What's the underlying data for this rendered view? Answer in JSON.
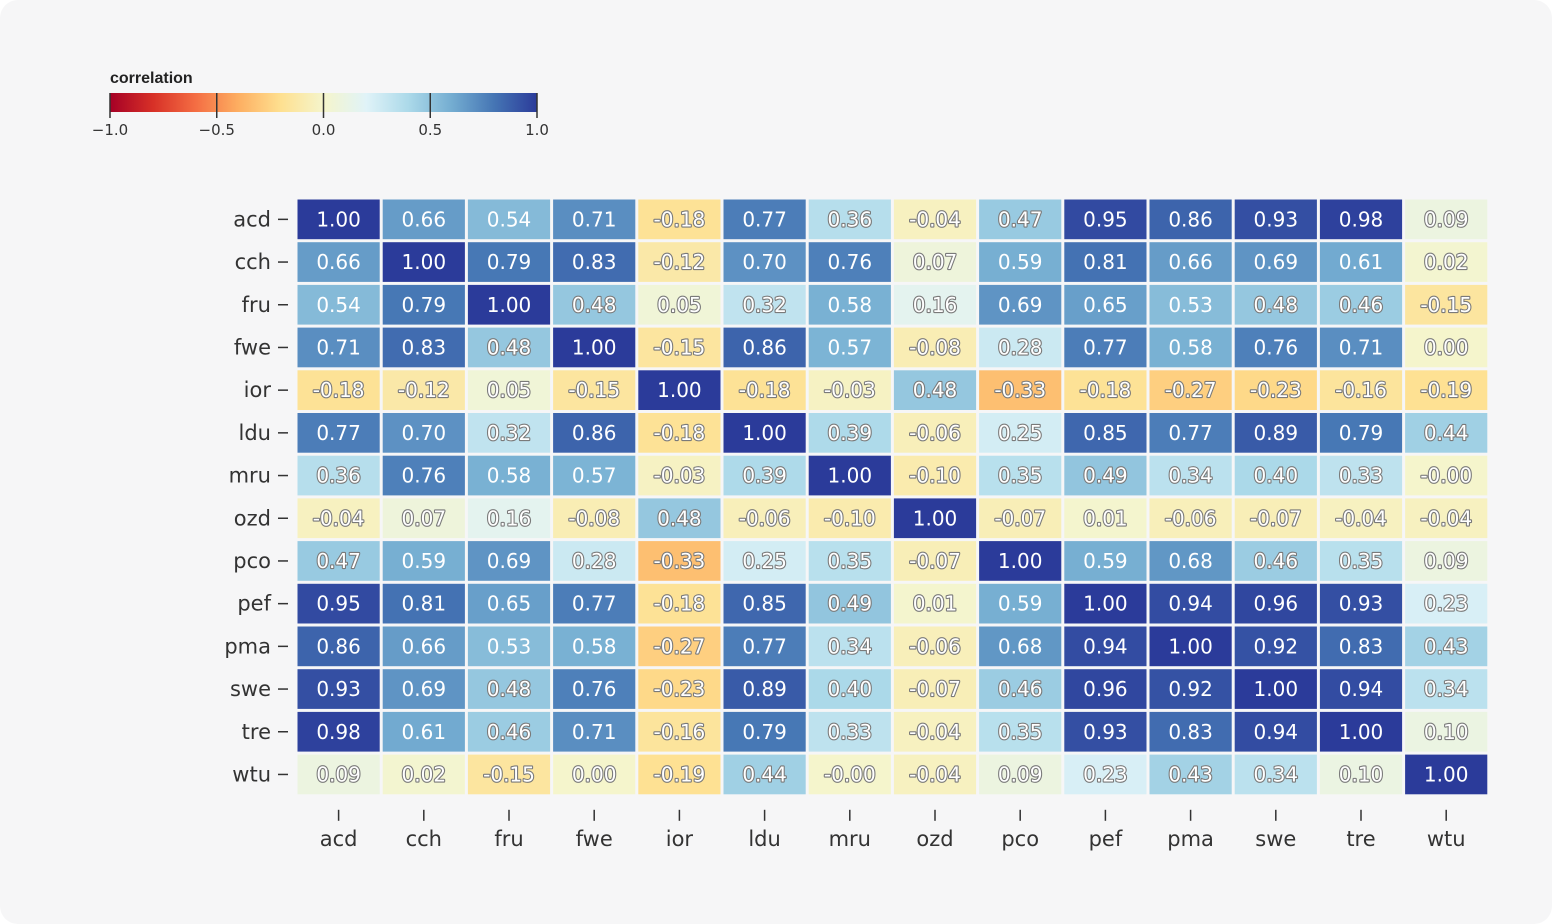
{
  "chart_data": {
    "type": "heatmap",
    "legend": {
      "title": "correlation",
      "placement": "top-left",
      "range": [
        -1.0,
        1.0
      ],
      "ticks": [
        "−1.0",
        "−0.5",
        "0.0",
        "0.5",
        "1.0"
      ],
      "tick_values": [
        -1.0,
        -0.5,
        0.0,
        0.5,
        1.0
      ],
      "colors": [
        "#a50026",
        "#d73027",
        "#f46d43",
        "#fdae61",
        "#fee090",
        "#f5f5cc",
        "#e0f3f8",
        "#abd9e9",
        "#74add1",
        "#4575b4",
        "#2b3b9a"
      ]
    },
    "rows": [
      "acd",
      "cch",
      "fru",
      "fwe",
      "ior",
      "ldu",
      "mru",
      "ozd",
      "pco",
      "pef",
      "pma",
      "swe",
      "tre",
      "wtu"
    ],
    "columns": [
      "acd",
      "cch",
      "fru",
      "fwe",
      "ior",
      "ldu",
      "mru",
      "ozd",
      "pco",
      "pef",
      "pma",
      "swe",
      "tre",
      "wtu"
    ],
    "labels": [
      [
        "1.00",
        "0.66",
        "0.54",
        "0.71",
        "-0.18",
        "0.77",
        "0.36",
        "-0.04",
        "0.47",
        "0.95",
        "0.86",
        "0.93",
        "0.98",
        "0.09"
      ],
      [
        "0.66",
        "1.00",
        "0.79",
        "0.83",
        "-0.12",
        "0.70",
        "0.76",
        "0.07",
        "0.59",
        "0.81",
        "0.66",
        "0.69",
        "0.61",
        "0.02"
      ],
      [
        "0.54",
        "0.79",
        "1.00",
        "0.48",
        "0.05",
        "0.32",
        "0.58",
        "0.16",
        "0.69",
        "0.65",
        "0.53",
        "0.48",
        "0.46",
        "-0.15"
      ],
      [
        "0.71",
        "0.83",
        "0.48",
        "1.00",
        "-0.15",
        "0.86",
        "0.57",
        "-0.08",
        "0.28",
        "0.77",
        "0.58",
        "0.76",
        "0.71",
        "0.00"
      ],
      [
        "-0.18",
        "-0.12",
        "0.05",
        "-0.15",
        "1.00",
        "-0.18",
        "-0.03",
        "0.48",
        "-0.33",
        "-0.18",
        "-0.27",
        "-0.23",
        "-0.16",
        "-0.19"
      ],
      [
        "0.77",
        "0.70",
        "0.32",
        "0.86",
        "-0.18",
        "1.00",
        "0.39",
        "-0.06",
        "0.25",
        "0.85",
        "0.77",
        "0.89",
        "0.79",
        "0.44"
      ],
      [
        "0.36",
        "0.76",
        "0.58",
        "0.57",
        "-0.03",
        "0.39",
        "1.00",
        "-0.10",
        "0.35",
        "0.49",
        "0.34",
        "0.40",
        "0.33",
        "-0.00"
      ],
      [
        "-0.04",
        "0.07",
        "0.16",
        "-0.08",
        "0.48",
        "-0.06",
        "-0.10",
        "1.00",
        "-0.07",
        "0.01",
        "-0.06",
        "-0.07",
        "-0.04",
        "-0.04"
      ],
      [
        "0.47",
        "0.59",
        "0.69",
        "0.28",
        "-0.33",
        "0.25",
        "0.35",
        "-0.07",
        "1.00",
        "0.59",
        "0.68",
        "0.46",
        "0.35",
        "0.09"
      ],
      [
        "0.95",
        "0.81",
        "0.65",
        "0.77",
        "-0.18",
        "0.85",
        "0.49",
        "0.01",
        "0.59",
        "1.00",
        "0.94",
        "0.96",
        "0.93",
        "0.23"
      ],
      [
        "0.86",
        "0.66",
        "0.53",
        "0.58",
        "-0.27",
        "0.77",
        "0.34",
        "-0.06",
        "0.68",
        "0.94",
        "1.00",
        "0.92",
        "0.83",
        "0.43"
      ],
      [
        "0.93",
        "0.69",
        "0.48",
        "0.76",
        "-0.23",
        "0.89",
        "0.40",
        "-0.07",
        "0.46",
        "0.96",
        "0.92",
        "1.00",
        "0.94",
        "0.34"
      ],
      [
        "0.98",
        "0.61",
        "0.46",
        "0.71",
        "-0.16",
        "0.79",
        "0.33",
        "-0.04",
        "0.35",
        "0.93",
        "0.83",
        "0.94",
        "1.00",
        "0.10"
      ],
      [
        "0.09",
        "0.02",
        "-0.15",
        "0.00",
        "-0.19",
        "0.44",
        "-0.00",
        "-0.04",
        "0.09",
        "0.23",
        "0.43",
        "0.34",
        "0.10",
        "1.00"
      ]
    ]
  }
}
